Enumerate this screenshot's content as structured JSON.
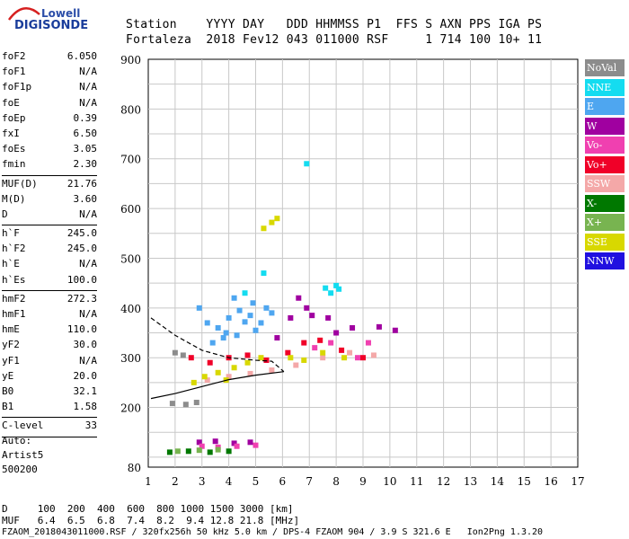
{
  "logo": {
    "line1": "Lowell",
    "line2": "DIGISONDE"
  },
  "header": {
    "line1": "Station    YYYY DAY   DDD HHMMSS P1  FFS S AXN PPS IGA PS",
    "line2": "Fortaleza  2018 Fev12 043 011000 RSF     1 714 100 10+ 11"
  },
  "params": [
    {
      "group": [
        {
          "name": "foF2",
          "value": "6.050"
        },
        {
          "name": "foF1",
          "value": "N/A"
        },
        {
          "name": "foF1p",
          "value": "N/A"
        },
        {
          "name": "foE",
          "value": "N/A"
        },
        {
          "name": "foEp",
          "value": "0.39"
        },
        {
          "name": "fxI",
          "value": "6.50"
        },
        {
          "name": "foEs",
          "value": "3.05"
        },
        {
          "name": "fmin",
          "value": "2.30"
        }
      ]
    },
    {
      "group": [
        {
          "name": "MUF(D)",
          "value": "21.76"
        },
        {
          "name": "M(D)",
          "value": "3.60"
        },
        {
          "name": "D",
          "value": "N/A"
        }
      ]
    },
    {
      "group": [
        {
          "name": "h`F",
          "value": "245.0"
        },
        {
          "name": "h`F2",
          "value": "245.0"
        },
        {
          "name": "h`E",
          "value": "N/A"
        },
        {
          "name": "h`Es",
          "value": "100.0"
        }
      ]
    },
    {
      "group": [
        {
          "name": "hmF2",
          "value": "272.3"
        },
        {
          "name": "hmF1",
          "value": "N/A"
        },
        {
          "name": "hmE",
          "value": "110.0"
        },
        {
          "name": "yF2",
          "value": "30.0"
        },
        {
          "name": "yF1",
          "value": "N/A"
        },
        {
          "name": "yE",
          "value": "20.0"
        },
        {
          "name": "B0",
          "value": "32.1"
        },
        {
          "name": "B1",
          "value": "1.58"
        }
      ]
    },
    {
      "group": [
        {
          "name": "C-level",
          "value": "33"
        }
      ]
    }
  ],
  "auto": [
    "Auto:",
    "Artist5",
    "500200"
  ],
  "legend": [
    {
      "label": "NoVal",
      "color": "#8c8c8c"
    },
    {
      "label": "NNE",
      "color": "#14dcf0"
    },
    {
      "label": "E",
      "color": "#4ea6f0"
    },
    {
      "label": "W",
      "color": "#a000a0"
    },
    {
      "label": "Vo-",
      "color": "#f040b0"
    },
    {
      "label": "Vo+",
      "color": "#f00028"
    },
    {
      "label": "SSW",
      "color": "#f4a8a8"
    },
    {
      "label": "X-",
      "color": "#007800"
    },
    {
      "label": "X+",
      "color": "#78b450"
    },
    {
      "label": "SSE",
      "color": "#d8d800"
    },
    {
      "label": "NNW",
      "color": "#2010e0"
    }
  ],
  "bottom": {
    "d_line": "D     100  200  400  600  800 1000 1500 3000 [km]",
    "muf_line": "MUF   6.4  6.5  6.8  7.4  8.2  9.4 12.8 21.8 [MHz]",
    "footer": "FZAOM_2018043011000.RSF / 320fx256h 50 kHz 5.0 km / DPS-4 FZAOM 904 / 3.9 S 321.6 E   Ion2Png 1.3.20"
  },
  "chart_data": {
    "type": "scatter",
    "title": "",
    "xlabel": "",
    "ylabel": "",
    "xlim": [
      1,
      17
    ],
    "ylim": [
      80,
      900
    ],
    "x_ticks": [
      1,
      2,
      3,
      4,
      5,
      6,
      7,
      8,
      9,
      10,
      11,
      12,
      13,
      14,
      15,
      16,
      17
    ],
    "y_ticks": [
      80,
      200,
      300,
      400,
      500,
      600,
      700,
      800,
      900
    ],
    "grid": true,
    "legend_position": "right",
    "series": [
      {
        "name": "NNE",
        "color": "#14dcf0",
        "points": [
          [
            7.6,
            440
          ],
          [
            7.8,
            430
          ],
          [
            8.0,
            445
          ],
          [
            8.1,
            438
          ],
          [
            6.9,
            690
          ],
          [
            5.3,
            470
          ],
          [
            4.6,
            430
          ]
        ]
      },
      {
        "name": "E",
        "color": "#4ea6f0",
        "points": [
          [
            3.2,
            370
          ],
          [
            3.6,
            360
          ],
          [
            4.0,
            380
          ],
          [
            4.4,
            395
          ],
          [
            4.8,
            385
          ],
          [
            5.2,
            370
          ],
          [
            5.6,
            390
          ],
          [
            3.9,
            350
          ],
          [
            4.3,
            345
          ],
          [
            5.0,
            355
          ],
          [
            3.4,
            330
          ],
          [
            3.8,
            340
          ],
          [
            4.6,
            372
          ],
          [
            5.4,
            400
          ],
          [
            2.9,
            400
          ],
          [
            4.2,
            420
          ],
          [
            4.9,
            410
          ]
        ]
      },
      {
        "name": "W",
        "color": "#a000a0",
        "points": [
          [
            2.9,
            130
          ],
          [
            3.5,
            132
          ],
          [
            4.2,
            128
          ],
          [
            4.8,
            130
          ],
          [
            6.6,
            420
          ],
          [
            6.9,
            400
          ],
          [
            7.1,
            385
          ],
          [
            7.7,
            380
          ],
          [
            8.0,
            350
          ],
          [
            8.6,
            360
          ],
          [
            10.2,
            355
          ],
          [
            9.6,
            362
          ],
          [
            6.3,
            380
          ],
          [
            5.8,
            340
          ]
        ]
      },
      {
        "name": "Vo-",
        "color": "#f040b0",
        "points": [
          [
            3.0,
            122
          ],
          [
            3.6,
            120
          ],
          [
            4.3,
            122
          ],
          [
            5.0,
            124
          ],
          [
            7.2,
            320
          ],
          [
            7.8,
            330
          ],
          [
            8.8,
            300
          ],
          [
            9.2,
            330
          ]
        ]
      },
      {
        "name": "Vo+",
        "color": "#f00028",
        "points": [
          [
            2.6,
            300
          ],
          [
            3.3,
            290
          ],
          [
            4.0,
            300
          ],
          [
            4.7,
            305
          ],
          [
            5.4,
            295
          ],
          [
            6.2,
            310
          ],
          [
            6.8,
            330
          ],
          [
            7.4,
            335
          ],
          [
            8.2,
            315
          ],
          [
            9.0,
            300
          ]
        ]
      },
      {
        "name": "SSW",
        "color": "#f4a8a8",
        "points": [
          [
            3.2,
            255
          ],
          [
            4.0,
            262
          ],
          [
            4.8,
            268
          ],
          [
            5.6,
            275
          ],
          [
            6.5,
            285
          ],
          [
            7.5,
            300
          ],
          [
            8.5,
            310
          ],
          [
            9.4,
            305
          ]
        ]
      },
      {
        "name": "X-",
        "color": "#007800",
        "points": [
          [
            1.8,
            110
          ],
          [
            2.5,
            112
          ],
          [
            3.3,
            110
          ],
          [
            4.0,
            112
          ]
        ]
      },
      {
        "name": "X+",
        "color": "#78b450",
        "points": [
          [
            2.1,
            112
          ],
          [
            2.9,
            114
          ],
          [
            3.6,
            115
          ]
        ]
      },
      {
        "name": "SSE",
        "color": "#d8d800",
        "points": [
          [
            2.7,
            250
          ],
          [
            3.1,
            262
          ],
          [
            3.6,
            270
          ],
          [
            4.2,
            280
          ],
          [
            4.7,
            290
          ],
          [
            5.2,
            300
          ],
          [
            5.6,
            572
          ],
          [
            5.3,
            560
          ],
          [
            5.8,
            580
          ],
          [
            6.8,
            295
          ],
          [
            7.5,
            310
          ],
          [
            8.3,
            300
          ],
          [
            6.3,
            300
          ],
          [
            3.9,
            255
          ]
        ]
      },
      {
        "name": "NoVal",
        "color": "#8c8c8c",
        "points": [
          [
            2.0,
            310
          ],
          [
            2.3,
            305
          ],
          [
            1.9,
            208
          ],
          [
            2.4,
            206
          ],
          [
            2.8,
            210
          ]
        ]
      }
    ],
    "profile_upper": [
      [
        1.1,
        380
      ],
      [
        2.0,
        345
      ],
      [
        3.0,
        315
      ],
      [
        4.0,
        300
      ],
      [
        5.0,
        295
      ],
      [
        5.6,
        293
      ],
      [
        6.05,
        272
      ]
    ],
    "profile_lower": [
      [
        1.1,
        218
      ],
      [
        2.0,
        228
      ],
      [
        3.0,
        242
      ],
      [
        4.0,
        256
      ],
      [
        5.0,
        265
      ],
      [
        6.05,
        272
      ]
    ]
  }
}
